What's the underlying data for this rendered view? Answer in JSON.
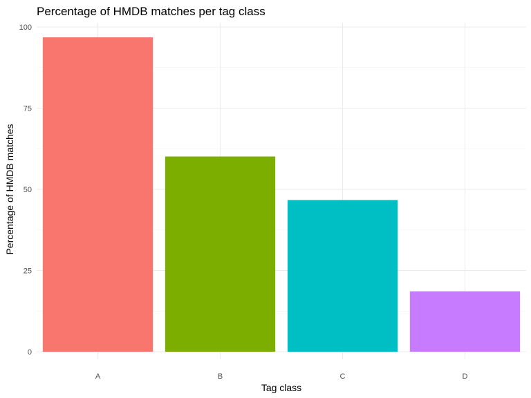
{
  "chart_data": {
    "type": "bar",
    "title": "Percentage of HMDB matches per tag class",
    "xlabel": "Tag class",
    "ylabel": "Percentage of HMDB matches",
    "categories": [
      "A",
      "B",
      "C",
      "D"
    ],
    "values": [
      96.8,
      60.1,
      46.7,
      18.6
    ],
    "colors": [
      "#F8766D",
      "#7CAE00",
      "#00BFC4",
      "#C77CFF"
    ],
    "ylim": [
      0,
      100
    ],
    "yticks": [
      0,
      25,
      50,
      75,
      100
    ],
    "ytick_labels": [
      "0",
      "25",
      "50",
      "75",
      "100"
    ],
    "grid": true,
    "legend": "none"
  }
}
